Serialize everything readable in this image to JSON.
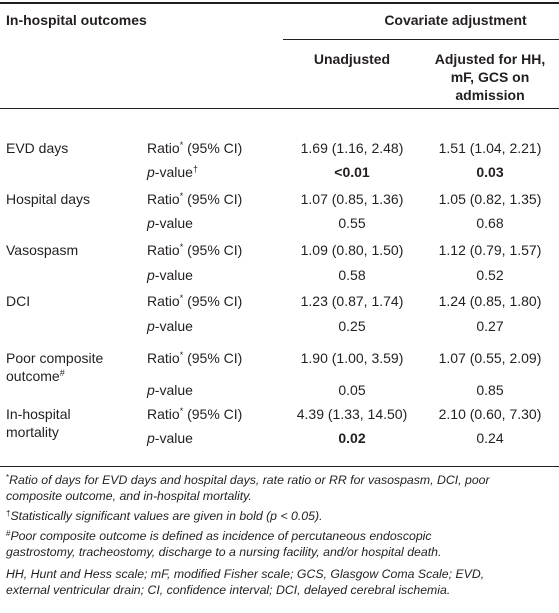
{
  "header": {
    "outcomes": "In-hospital outcomes",
    "covariate": "Covariate adjustment",
    "unadjusted": "Unadjusted",
    "adjusted_line1": "Adjusted for HH,",
    "adjusted_line2": "mF, GCS on",
    "adjusted_line3": "admission"
  },
  "labels": {
    "ratio": "Ratio",
    "ratio_mark": "*",
    "ci": " (95% CI)",
    "p": "p",
    "pvalue_suffix": "-value",
    "dagger": "†"
  },
  "rows": [
    {
      "outcome": "EVD days",
      "ratio_un": "1.69 (1.16, 2.48)",
      "ratio_ad": "1.51 (1.04, 2.21)",
      "p_un": "<0.01",
      "p_ad": "0.03"
    },
    {
      "outcome": "Hospital days",
      "ratio_un": "1.07 (0.85, 1.36)",
      "ratio_ad": "1.05 (0.82, 1.35)",
      "p_un": "0.55",
      "p_ad": "0.68"
    },
    {
      "outcome": "Vasospasm",
      "ratio_un": "1.09 (0.80, 1.50)",
      "ratio_ad": "1.12 (0.79, 1.57)",
      "p_un": "0.58",
      "p_ad": "0.52"
    },
    {
      "outcome": "DCI",
      "ratio_un": "1.23 (0.87, 1.74)",
      "ratio_ad": "1.24 (0.85, 1.80)",
      "p_un": "0.25",
      "p_ad": "0.27"
    },
    {
      "outcome_line1": "Poor composite",
      "outcome_line2": "outcome",
      "outcome_mark": "#",
      "ratio_un": "1.90 (1.00, 3.59)",
      "ratio_ad": "1.07 (0.55, 2.09)",
      "p_un": "0.05",
      "p_ad": "0.85"
    },
    {
      "outcome_line1": "In-hospital",
      "outcome_line2": "mortality",
      "ratio_un": "4.39 (1.33, 14.50)",
      "ratio_ad": "2.10 (0.60, 7.30)",
      "p_un": "0.02",
      "p_ad": "0.24"
    }
  ],
  "footnotes": {
    "f1_mark": "*",
    "f1_line1": "Ratio of days for EVD days and hospital days, rate ratio or RR for vasospasm, DCI, poor",
    "f1_line2": "composite outcome, and in-hospital mortality.",
    "f2_mark": "†",
    "f2_text": "Statistically significant values are given in bold (p < 0.05).",
    "f3_mark": "#",
    "f3_line1": "Poor composite outcome is defined as incidence of percutaneous endoscopic",
    "f3_line2": "gastrostomy, tracheostomy, discharge to a nursing facility, and/or hospital death.",
    "f4_line1": "HH, Hunt and Hess scale; mF, modified Fisher scale; GCS, Glasgow Coma Scale; EVD,",
    "f4_line2": "external ventricular drain; CI, confidence interval; DCI, delayed cerebral ischemia."
  }
}
